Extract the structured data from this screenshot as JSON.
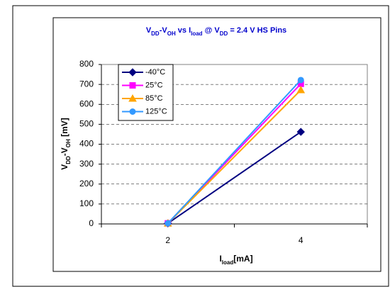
{
  "chart_data": {
    "type": "line",
    "title": [
      {
        "text": "V"
      },
      {
        "text": "DD",
        "sub": true
      },
      {
        "text": "-V"
      },
      {
        "text": "OH",
        "sub": true
      },
      {
        "text": " vs I"
      },
      {
        "text": "load",
        "sub": true
      },
      {
        "text": " @ V"
      },
      {
        "text": "DD",
        "sub": true
      },
      {
        "text": " = 2.4 V HS Pins"
      }
    ],
    "y_label": [
      {
        "text": "V"
      },
      {
        "text": "DD",
        "sub": true
      },
      {
        "text": "-V"
      },
      {
        "text": "OH",
        "sub": true
      },
      {
        "text": " [mV]"
      }
    ],
    "x_label": [
      {
        "text": "I"
      },
      {
        "text": "load",
        "sub": true
      },
      {
        "text": "[mA]"
      }
    ],
    "categories": [
      "2",
      "4"
    ],
    "series": [
      {
        "name": "-40°C",
        "color": "#000080",
        "marker": "diamond",
        "values": [
          3,
          462
        ]
      },
      {
        "name": "25°C",
        "color": "#FF00FF",
        "marker": "square",
        "values": [
          3,
          703
        ]
      },
      {
        "name": "85°C",
        "color": "#FFA500",
        "marker": "triangle",
        "values": [
          3,
          672
        ]
      },
      {
        "name": "125°C",
        "color": "#3399FF",
        "marker": "circle",
        "values": [
          3,
          722
        ]
      }
    ],
    "ylim": [
      0,
      800
    ],
    "yticks": [
      0,
      100,
      200,
      300,
      400,
      500,
      600,
      700,
      800
    ],
    "grid": true
  }
}
